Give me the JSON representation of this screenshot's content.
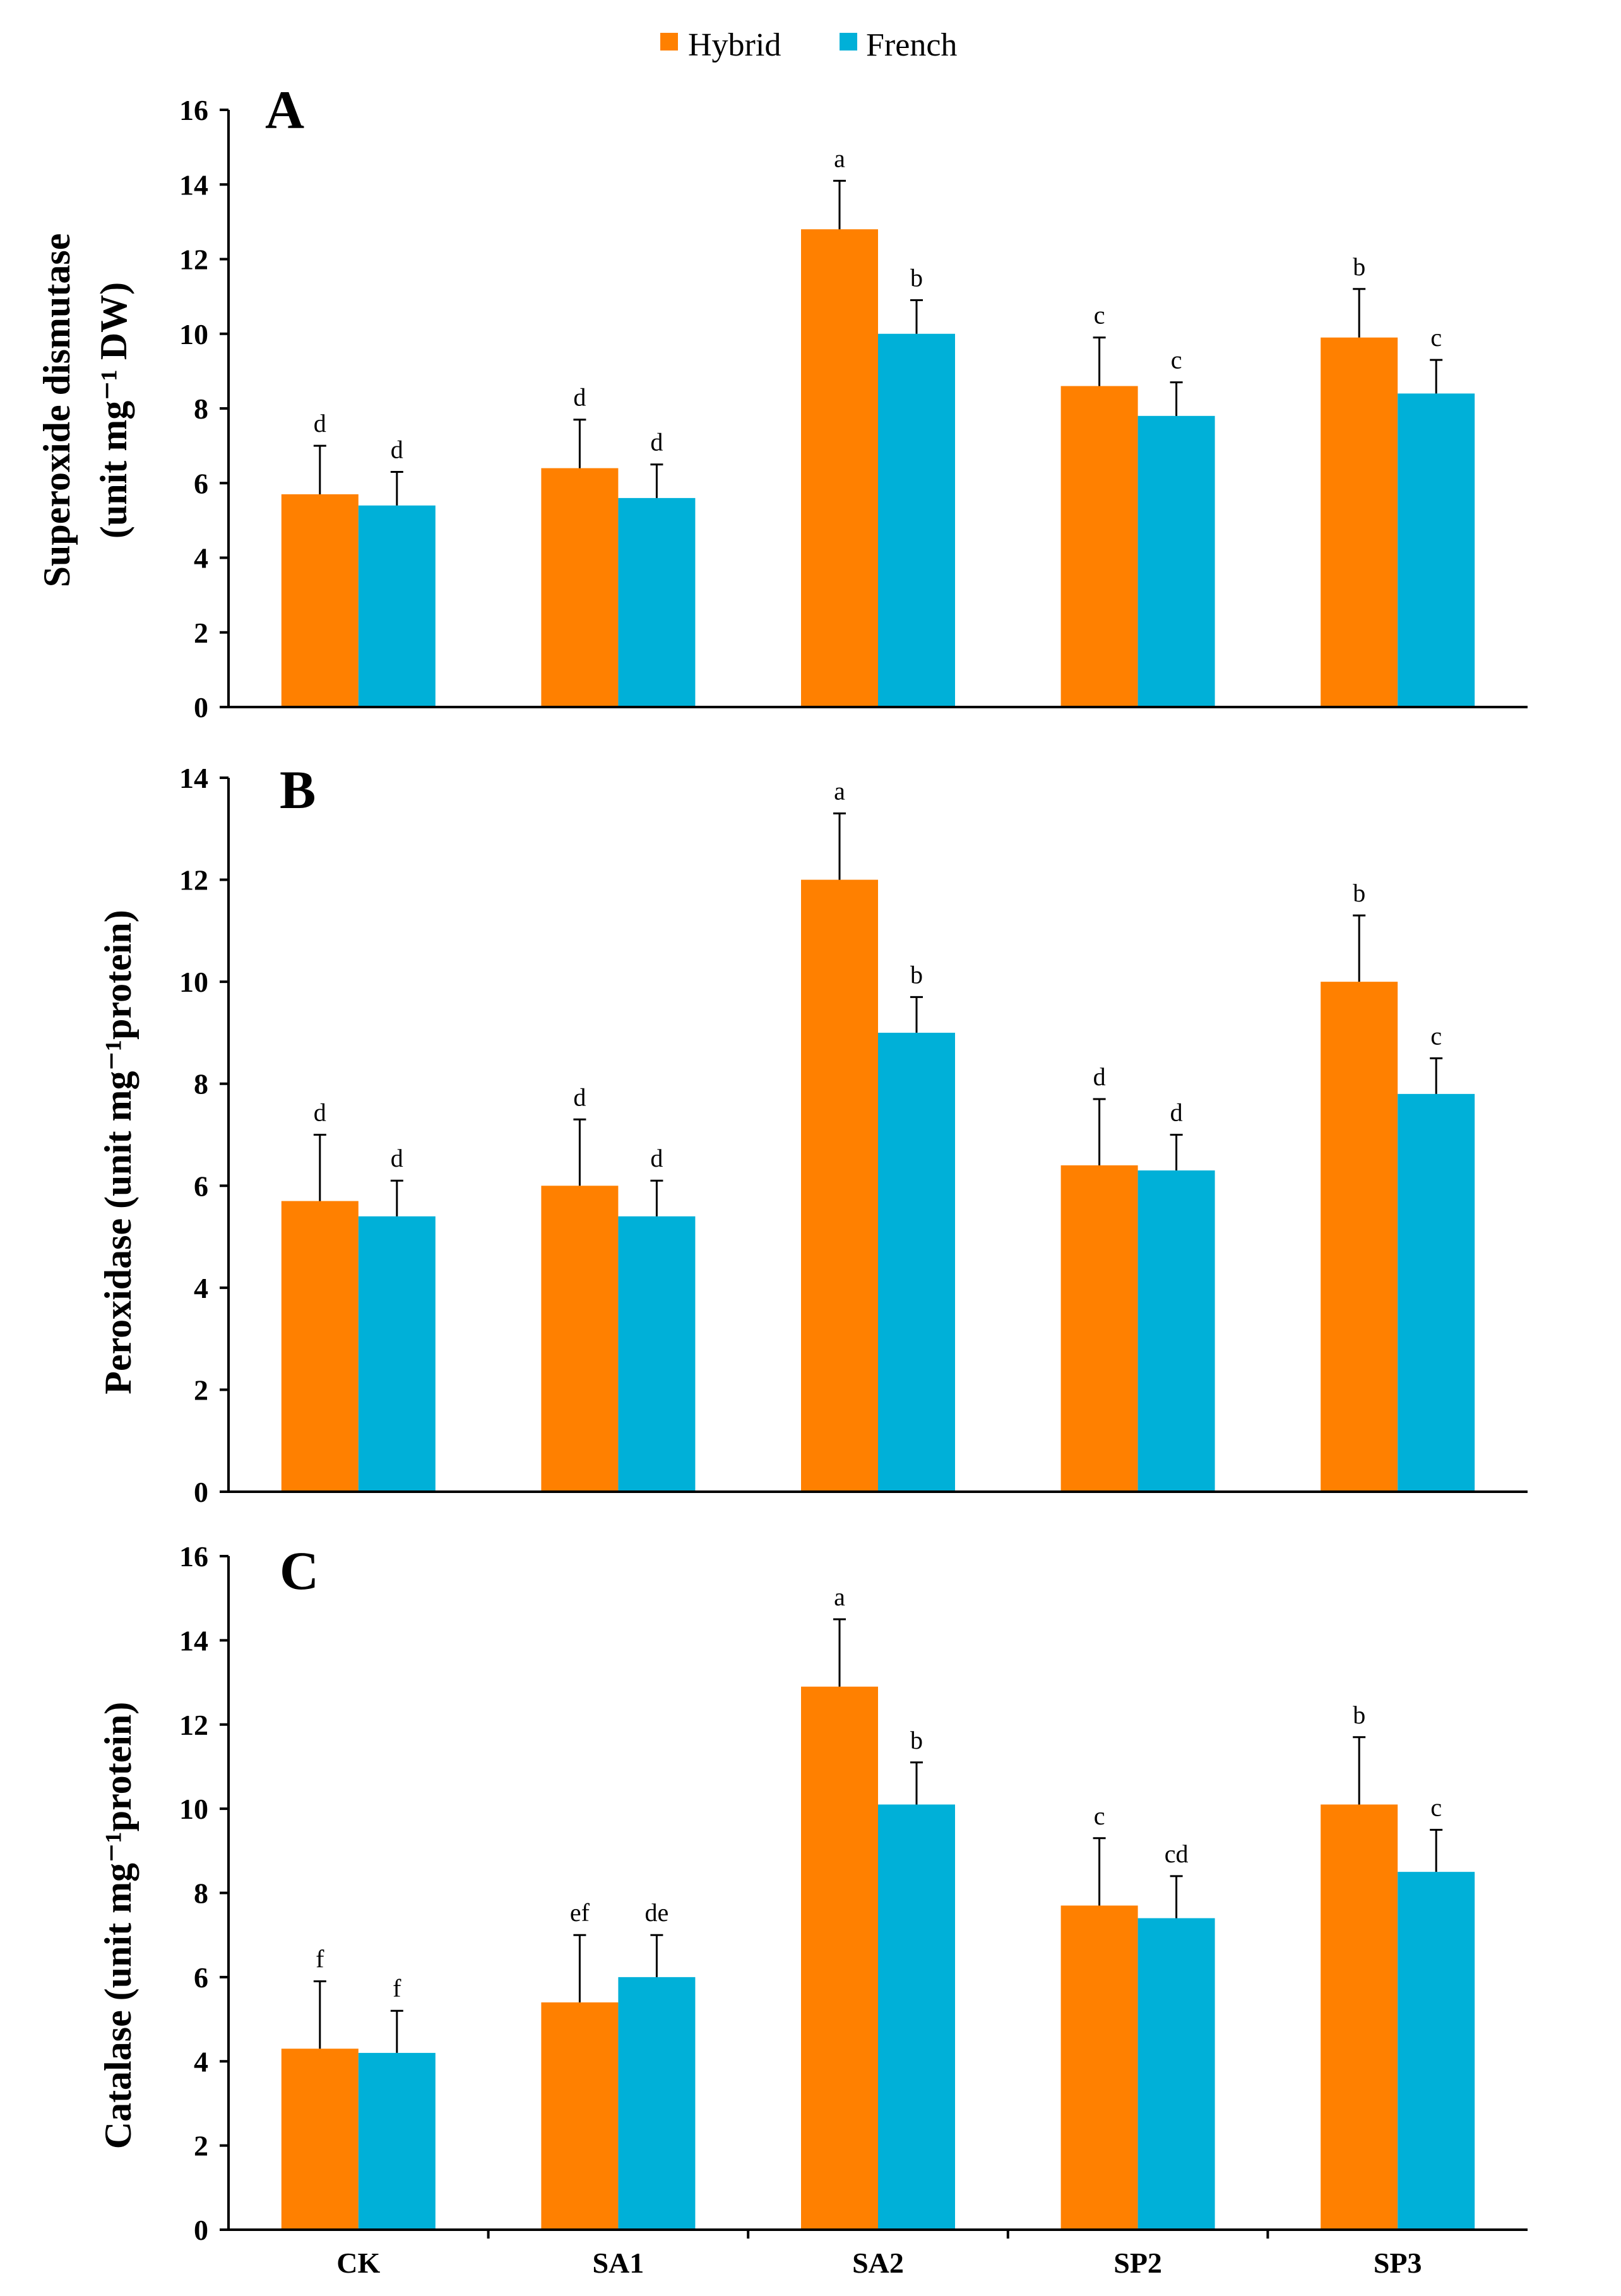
{
  "legend": [
    {
      "name": "Hybrid",
      "color": "#FF8000"
    },
    {
      "name": "French",
      "color": "#00B0D8"
    }
  ],
  "chart_data": [
    {
      "type": "bar",
      "panel": "A",
      "ylabel_line1": "Superoxide dismutase",
      "ylabel_line2": "(unit mg⁻¹ DW)",
      "ylim": [
        0,
        16
      ],
      "yticks": [
        "0",
        "2",
        "4",
        "6",
        "8",
        "10",
        "12",
        "14",
        "16"
      ],
      "categories": [
        "CK",
        "SA1",
        "SA2",
        "SP2",
        "SP3"
      ],
      "series": [
        {
          "name": "Hybrid",
          "values": [
            5.7,
            6.4,
            12.8,
            8.6,
            9.9
          ],
          "errors": [
            1.3,
            1.3,
            1.3,
            1.3,
            1.3
          ],
          "letters": [
            "d",
            "d",
            "a",
            "c",
            "b"
          ]
        },
        {
          "name": "French",
          "values": [
            5.4,
            5.6,
            10.0,
            7.8,
            8.4
          ],
          "errors": [
            0.9,
            0.9,
            0.9,
            0.9,
            0.9
          ],
          "letters": [
            "d",
            "d",
            "b",
            "c",
            "c"
          ]
        }
      ]
    },
    {
      "type": "bar",
      "panel": "B",
      "ylabel_line1": "Peroxidase (unit mg⁻¹protein)",
      "ylabel_line2": "",
      "ylim": [
        0,
        14
      ],
      "yticks": [
        "0",
        "2",
        "4",
        "6",
        "8",
        "10",
        "12",
        "14"
      ],
      "categories": [
        "CK",
        "SA1",
        "SA2",
        "SP2",
        "SP3"
      ],
      "series": [
        {
          "name": "Hybrid",
          "values": [
            5.7,
            6.0,
            12.0,
            6.4,
            10.0
          ],
          "errors": [
            1.3,
            1.3,
            1.3,
            1.3,
            1.3
          ],
          "letters": [
            "d",
            "d",
            "a",
            "d",
            "b"
          ]
        },
        {
          "name": "French",
          "values": [
            5.4,
            5.4,
            9.0,
            6.3,
            7.8
          ],
          "errors": [
            0.7,
            0.7,
            0.7,
            0.7,
            0.7
          ],
          "letters": [
            "d",
            "d",
            "b",
            "d",
            "c"
          ]
        }
      ]
    },
    {
      "type": "bar",
      "panel": "C",
      "ylabel_line1": "Catalase (unit mg⁻¹protein)",
      "ylabel_line2": "",
      "ylim": [
        0,
        16
      ],
      "yticks": [
        "0",
        "2",
        "4",
        "6",
        "8",
        "10",
        "12",
        "14",
        "16"
      ],
      "categories": [
        "CK",
        "SA1",
        "SA2",
        "SP2",
        "SP3"
      ],
      "series": [
        {
          "name": "Hybrid",
          "values": [
            4.3,
            5.4,
            12.9,
            7.7,
            10.1
          ],
          "errors": [
            1.6,
            1.6,
            1.6,
            1.6,
            1.6
          ],
          "letters": [
            "f",
            "ef",
            "a",
            "c",
            "b"
          ]
        },
        {
          "name": "French",
          "values": [
            4.2,
            6.0,
            10.1,
            7.4,
            8.5
          ],
          "errors": [
            1.0,
            1.0,
            1.0,
            1.0,
            1.0
          ],
          "letters": [
            "f",
            "de",
            "b",
            "cd",
            "c"
          ]
        }
      ]
    }
  ]
}
